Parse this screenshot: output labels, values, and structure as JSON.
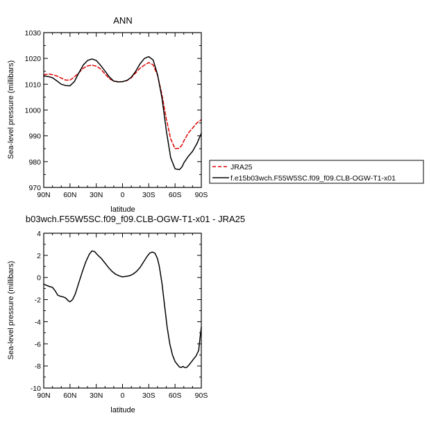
{
  "chart_data": [
    {
      "type": "line",
      "title": "ANN",
      "xlabel": "latitude",
      "ylabel": "Sea-level pressure (millibars)",
      "xlim": [
        90,
        -90
      ],
      "ylim": [
        970,
        1030
      ],
      "x_ticks": [
        90,
        60,
        30,
        0,
        -30,
        -60,
        -90
      ],
      "x_tick_labels": [
        "90N",
        "60N",
        "30N",
        "0",
        "30S",
        "60S",
        "90S"
      ],
      "y_ticks": [
        970,
        980,
        990,
        1000,
        1010,
        1020,
        1030
      ],
      "y_tick_labels": [
        "970",
        "980",
        "990",
        "1000",
        "1010",
        "1020",
        "1030"
      ],
      "legend": "right",
      "series": [
        {
          "name": "JRA25",
          "color": "#e00000",
          "dash": true,
          "x": [
            90,
            85,
            80,
            75,
            70,
            65,
            60,
            55,
            50,
            45,
            40,
            35,
            30,
            25,
            20,
            15,
            10,
            5,
            0,
            -5,
            -10,
            -15,
            -20,
            -25,
            -30,
            -35,
            -40,
            -45,
            -50,
            -55,
            -60,
            -65,
            -68,
            -70,
            -75,
            -80,
            -85,
            -90
          ],
          "y": [
            1013.6,
            1014,
            1013.7,
            1013.2,
            1012.4,
            1011.6,
            1011.6,
            1012.8,
            1014.4,
            1016.2,
            1017.1,
            1017.4,
            1017,
            1015.9,
            1014,
            1012.2,
            1011.2,
            1011,
            1011,
            1011.4,
            1012.5,
            1014.4,
            1016.2,
            1017.4,
            1018.4,
            1017.5,
            1013.5,
            1006,
            996.5,
            988.8,
            985,
            985.2,
            986.5,
            988,
            991,
            993,
            995,
            996.3
          ]
        },
        {
          "name": "f.e15b03wch.F55W5SC.f09_f09.CLB-OGW-T1-x01",
          "color": "#000000",
          "dash": false,
          "x": [
            90,
            85,
            80,
            75,
            70,
            65,
            60,
            55,
            50,
            45,
            40,
            35,
            30,
            25,
            20,
            15,
            10,
            5,
            0,
            -5,
            -10,
            -15,
            -20,
            -25,
            -30,
            -35,
            -40,
            -45,
            -50,
            -55,
            -60,
            -65,
            -68,
            -70,
            -75,
            -80,
            -85,
            -90
          ],
          "y": [
            1013.2,
            1013,
            1012.5,
            1011.3,
            1010,
            1009.5,
            1009.4,
            1011,
            1014.3,
            1017.4,
            1019.2,
            1019.8,
            1019.2,
            1017.3,
            1015.1,
            1012.8,
            1011.2,
            1010.9,
            1011,
            1011.5,
            1012.7,
            1015,
            1017.9,
            1020,
            1020.7,
            1019.4,
            1013.8,
            1004.7,
            992,
            981.5,
            977.2,
            976.9,
            978,
            979.5,
            982,
            984,
            987,
            991
          ]
        }
      ]
    },
    {
      "type": "line",
      "title": "b03wch.F55W5SC.f09_f09.CLB-OGW-T1-x01 - JRA25",
      "xlabel": "latitude",
      "ylabel": "Sea-level pressure (millibars)",
      "xlim": [
        90,
        -90
      ],
      "ylim": [
        -10,
        4
      ],
      "x_ticks": [
        90,
        60,
        30,
        0,
        -30,
        -60,
        -90
      ],
      "x_tick_labels": [
        "90N",
        "60N",
        "30N",
        "0",
        "30S",
        "60S",
        "90S"
      ],
      "y_ticks": [
        -10,
        -8,
        -6,
        -4,
        -2,
        0,
        2,
        4
      ],
      "y_tick_labels": [
        "-10",
        "-8",
        "-6",
        "-4",
        "-2",
        "0",
        "2",
        "4"
      ],
      "series": [
        {
          "color": "#000000",
          "dash": false,
          "x": [
            90,
            87,
            84,
            80,
            77,
            74,
            71,
            68,
            65,
            62,
            60,
            57,
            54,
            50,
            46,
            42,
            38,
            35,
            32,
            28,
            24,
            20,
            16,
            12,
            8,
            4,
            0,
            -4,
            -8,
            -12,
            -16,
            -20,
            -24,
            -28,
            -31,
            -34,
            -37,
            -40,
            -42,
            -45,
            -48,
            -51,
            -54,
            -57,
            -60,
            -63,
            -65,
            -67,
            -69,
            -71,
            -73,
            -75,
            -78,
            -81,
            -84,
            -87,
            -88.5,
            -90
          ],
          "y": [
            -0.6,
            -0.7,
            -0.8,
            -0.9,
            -1.2,
            -1.6,
            -1.7,
            -1.75,
            -1.85,
            -2.1,
            -2.2,
            -2.0,
            -1.5,
            -0.5,
            0.5,
            1.4,
            2.1,
            2.4,
            2.35,
            2.0,
            1.7,
            1.3,
            0.9,
            0.55,
            0.3,
            0.15,
            0.05,
            0.1,
            0.15,
            0.3,
            0.55,
            0.9,
            1.4,
            1.9,
            2.2,
            2.3,
            2.2,
            1.7,
            1.0,
            -0.5,
            -2.5,
            -4.5,
            -6.0,
            -7.0,
            -7.6,
            -7.9,
            -8.1,
            -8.15,
            -8.05,
            -8.15,
            -8.15,
            -8.0,
            -7.7,
            -7.4,
            -7.1,
            -6.6,
            -5.5,
            -4.5
          ]
        }
      ]
    }
  ]
}
